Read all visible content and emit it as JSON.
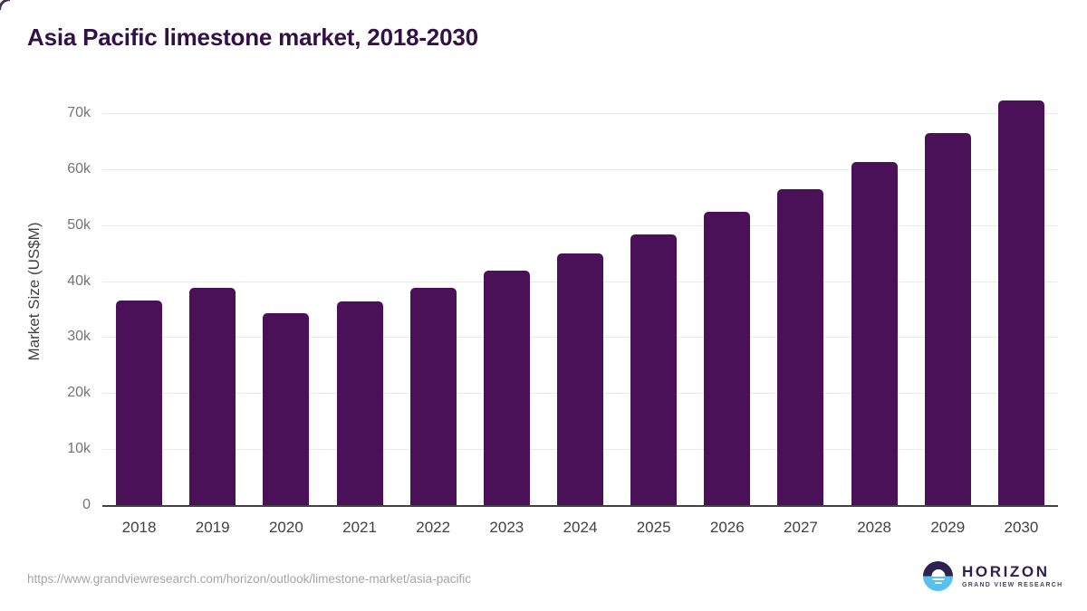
{
  "title": "Asia Pacific limestone market, 2018-2030",
  "chart_data": {
    "type": "bar",
    "title": "Asia Pacific limestone market, 2018-2030",
    "categories": [
      "2018",
      "2019",
      "2020",
      "2021",
      "2022",
      "2023",
      "2024",
      "2025",
      "2026",
      "2027",
      "2028",
      "2029",
      "2030"
    ],
    "values": [
      36500,
      38800,
      34200,
      36300,
      38800,
      41800,
      44900,
      48400,
      52300,
      56500,
      61200,
      66400,
      72200
    ],
    "xlabel": "",
    "ylabel": "Market Size (US$M)",
    "ylim": [
      0,
      74000
    ],
    "yticks": [
      0,
      10000,
      20000,
      30000,
      40000,
      50000,
      60000,
      70000
    ],
    "ytick_labels": [
      "0",
      "10k",
      "20k",
      "30k",
      "40k",
      "50k",
      "60k",
      "70k"
    ],
    "bar_color": "#4a1159",
    "grid": "horizontal-only",
    "legend": "none"
  },
  "footer": {
    "source_url": "https://www.grandviewresearch.com/horizon/outlook/limestone-market/asia-pacific",
    "logo": {
      "brand": "HORIZON",
      "subbrand": "GRAND VIEW RESEARCH"
    }
  },
  "colors": {
    "bar": "#4a1159",
    "title_text": "#331048",
    "axis_label_text": "#424242",
    "tick_text": "#757575",
    "gridline": "#ebebeb",
    "axis_line": "#424242",
    "url_text": "#a6a6a6",
    "logo_dark": "#2d2150",
    "logo_blue": "#56c1ed"
  }
}
